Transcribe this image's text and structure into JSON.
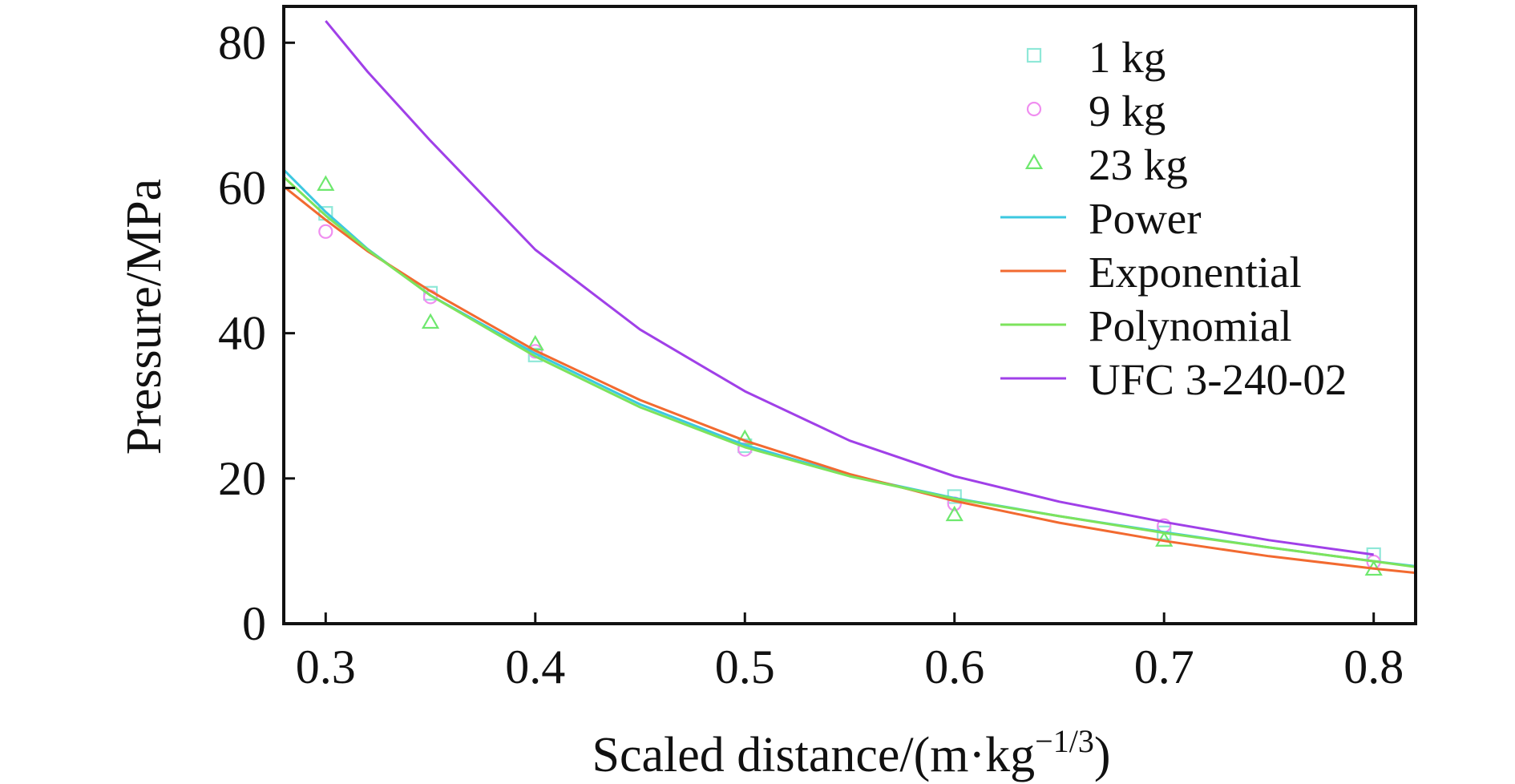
{
  "chart_data": {
    "type": "scatter",
    "title": "",
    "xlabel": "Scaled distance/(m·kg",
    "xlabel_superscript": "−1/3",
    "xlabel_suffix": ")",
    "ylabel": "Pressure/MPa",
    "xlim": [
      0.28,
      0.82
    ],
    "ylim": [
      0,
      85
    ],
    "x_ticks": [
      0.3,
      0.4,
      0.5,
      0.6,
      0.7,
      0.8
    ],
    "x_tick_labels": [
      "0.3",
      "0.4",
      "0.5",
      "0.6",
      "0.7",
      "0.8"
    ],
    "y_ticks": [
      0,
      20,
      40,
      60,
      80
    ],
    "y_tick_labels": [
      "0",
      "20",
      "40",
      "60",
      "80"
    ],
    "grid": false,
    "legend_position": "top-right",
    "series": [
      {
        "name": "1 kg",
        "kind": "scatter",
        "marker": "square",
        "color": "#8fe8d8",
        "x": [
          0.3,
          0.35,
          0.4,
          0.5,
          0.6,
          0.7,
          0.8
        ],
        "y": [
          56.5,
          45.5,
          37.0,
          24.5,
          17.5,
          12.5,
          9.5
        ]
      },
      {
        "name": "9 kg",
        "kind": "scatter",
        "marker": "circle",
        "color": "#f08ef0",
        "x": [
          0.3,
          0.35,
          0.4,
          0.5,
          0.6,
          0.7,
          0.8
        ],
        "y": [
          54.0,
          45.0,
          37.5,
          24.0,
          16.5,
          13.5,
          8.5
        ]
      },
      {
        "name": "23 kg",
        "kind": "scatter",
        "marker": "triangle",
        "color": "#6ee86e",
        "x": [
          0.3,
          0.35,
          0.4,
          0.5,
          0.6,
          0.7,
          0.8
        ],
        "y": [
          60.5,
          41.5,
          38.5,
          25.5,
          15.0,
          11.5,
          7.5
        ]
      },
      {
        "name": "Power",
        "kind": "line",
        "color": "#3cc8e0",
        "x": [
          0.28,
          0.3,
          0.32,
          0.35,
          0.4,
          0.45,
          0.5,
          0.55,
          0.6,
          0.65,
          0.7,
          0.75,
          0.8,
          0.82
        ],
        "y": [
          62.5,
          56.7,
          51.6,
          45.2,
          37.2,
          30.2,
          24.6,
          20.4,
          17.3,
          14.8,
          12.6,
          10.5,
          8.6,
          7.9
        ]
      },
      {
        "name": "Exponential",
        "kind": "line",
        "color": "#f26a30",
        "x": [
          0.28,
          0.3,
          0.32,
          0.35,
          0.4,
          0.45,
          0.5,
          0.55,
          0.6,
          0.65,
          0.7,
          0.75,
          0.8,
          0.82
        ],
        "y": [
          60.2,
          55.6,
          51.3,
          45.8,
          37.6,
          30.8,
          25.2,
          20.6,
          16.9,
          13.9,
          11.4,
          9.3,
          7.6,
          7.0
        ]
      },
      {
        "name": "Polynomial",
        "kind": "line",
        "color": "#7de35c",
        "x": [
          0.28,
          0.3,
          0.32,
          0.35,
          0.4,
          0.45,
          0.5,
          0.55,
          0.6,
          0.65,
          0.7,
          0.75,
          0.8,
          0.82
        ],
        "y": [
          61.5,
          56.2,
          51.5,
          45.2,
          36.8,
          29.8,
          24.3,
          20.3,
          17.2,
          14.8,
          12.5,
          10.5,
          8.6,
          7.8
        ]
      },
      {
        "name": "UFC 3-240-02",
        "kind": "line",
        "color": "#a040e8",
        "x": [
          0.3,
          0.32,
          0.35,
          0.4,
          0.45,
          0.5,
          0.55,
          0.6,
          0.65,
          0.7,
          0.75,
          0.8
        ],
        "y": [
          83.0,
          76.0,
          66.5,
          51.5,
          40.5,
          32.0,
          25.2,
          20.3,
          16.8,
          14.0,
          11.5,
          9.5
        ]
      }
    ]
  }
}
